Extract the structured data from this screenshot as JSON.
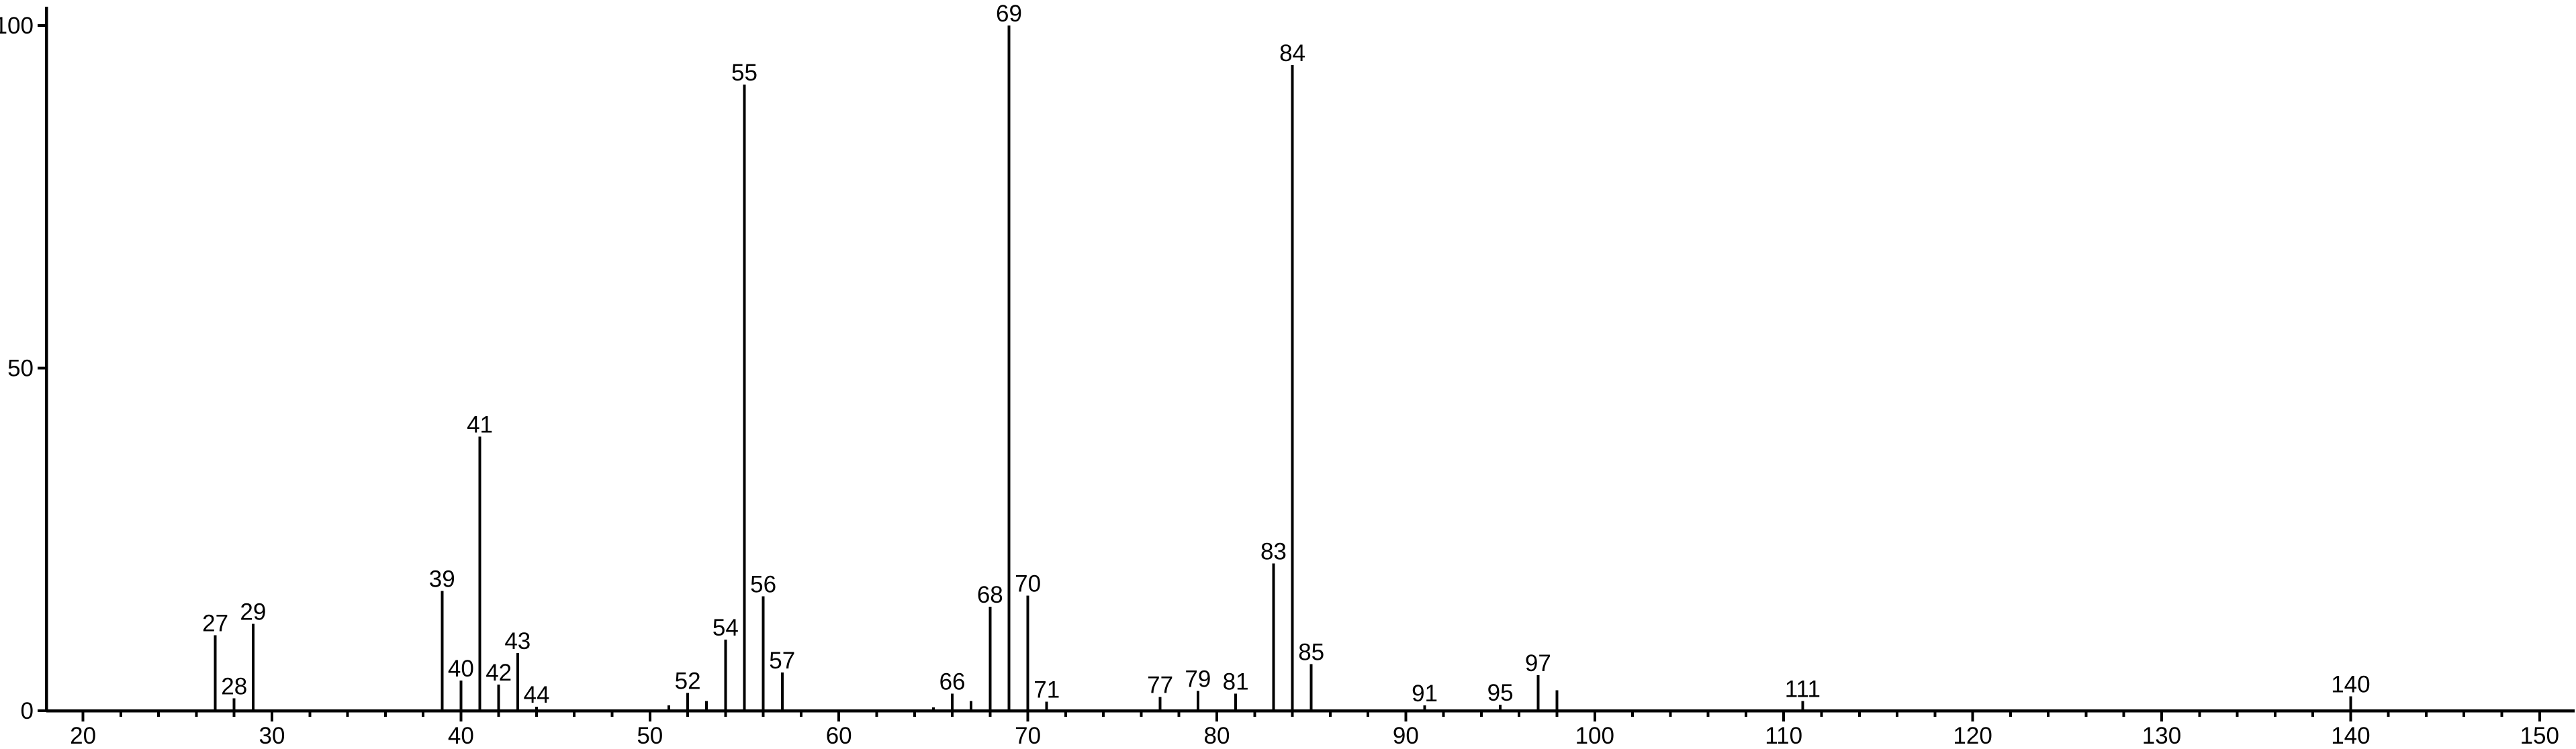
{
  "page": {
    "background_color": "#ffffff"
  },
  "chart_data": {
    "type": "bar",
    "variant": "mass-spectrum-stick",
    "title": "",
    "xlabel": "",
    "ylabel": "",
    "grid": false,
    "legend": null,
    "colors": {
      "foreground": "#000000",
      "background": "#ffffff"
    },
    "x_axis": {
      "min": 20,
      "max": 150,
      "major_step": 10,
      "minor_step": 2,
      "major_ticks": [
        {
          "value": 20,
          "label": "20"
        },
        {
          "value": 30,
          "label": "30"
        },
        {
          "value": 40,
          "label": "40"
        },
        {
          "value": 50,
          "label": "50"
        },
        {
          "value": 60,
          "label": "60"
        },
        {
          "value": 70,
          "label": "70"
        },
        {
          "value": 80,
          "label": "80"
        },
        {
          "value": 90,
          "label": "90"
        },
        {
          "value": 100,
          "label": "100"
        },
        {
          "value": 110,
          "label": "110"
        },
        {
          "value": 120,
          "label": "120"
        },
        {
          "value": 130,
          "label": "130"
        },
        {
          "value": 140,
          "label": "140"
        },
        {
          "value": 150,
          "label": "150"
        }
      ]
    },
    "y_axis": {
      "min": 0,
      "max": 100,
      "ticks": [
        {
          "value": 0,
          "label": "0"
        },
        {
          "value": 50,
          "label": "50"
        },
        {
          "value": 100,
          "label": "100"
        }
      ]
    },
    "peaks": [
      {
        "mz": 27,
        "intensity": 11.0,
        "label": "27"
      },
      {
        "mz": 28,
        "intensity": 1.8,
        "label": "28"
      },
      {
        "mz": 29,
        "intensity": 12.7,
        "label": "29"
      },
      {
        "mz": 39,
        "intensity": 17.5,
        "label": "39"
      },
      {
        "mz": 40,
        "intensity": 4.4,
        "label": "40"
      },
      {
        "mz": 41,
        "intensity": 40.0,
        "label": "41"
      },
      {
        "mz": 42,
        "intensity": 3.8,
        "label": "42"
      },
      {
        "mz": 43,
        "intensity": 8.4,
        "label": "43"
      },
      {
        "mz": 44,
        "intensity": 0.6,
        "label": "44"
      },
      {
        "mz": 51,
        "intensity": 0.8,
        "label": ""
      },
      {
        "mz": 52,
        "intensity": 2.6,
        "label": "52"
      },
      {
        "mz": 53,
        "intensity": 1.4,
        "label": ""
      },
      {
        "mz": 54,
        "intensity": 10.4,
        "label": "54"
      },
      {
        "mz": 55,
        "intensity": 91.4,
        "label": "55"
      },
      {
        "mz": 56,
        "intensity": 16.7,
        "label": "56"
      },
      {
        "mz": 57,
        "intensity": 5.6,
        "label": "57"
      },
      {
        "mz": 65,
        "intensity": 0.5,
        "label": ""
      },
      {
        "mz": 66,
        "intensity": 2.5,
        "label": "66"
      },
      {
        "mz": 67,
        "intensity": 1.4,
        "label": ""
      },
      {
        "mz": 68,
        "intensity": 15.2,
        "label": "68"
      },
      {
        "mz": 69,
        "intensity": 100.0,
        "label": "69"
      },
      {
        "mz": 70,
        "intensity": 16.8,
        "label": "70"
      },
      {
        "mz": 71,
        "intensity": 1.3,
        "label": "71"
      },
      {
        "mz": 77,
        "intensity": 2.0,
        "label": "77"
      },
      {
        "mz": 79,
        "intensity": 2.9,
        "label": "79"
      },
      {
        "mz": 81,
        "intensity": 2.5,
        "label": "81"
      },
      {
        "mz": 83,
        "intensity": 21.5,
        "label": "83"
      },
      {
        "mz": 84,
        "intensity": 94.2,
        "label": "84"
      },
      {
        "mz": 85,
        "intensity": 6.8,
        "label": "85"
      },
      {
        "mz": 91,
        "intensity": 0.8,
        "label": "91"
      },
      {
        "mz": 95,
        "intensity": 0.9,
        "label": "95"
      },
      {
        "mz": 97,
        "intensity": 5.2,
        "label": "97"
      },
      {
        "mz": 98,
        "intensity": 3.0,
        "label": ""
      },
      {
        "mz": 111,
        "intensity": 1.4,
        "label": "111"
      },
      {
        "mz": 140,
        "intensity": 2.1,
        "label": "140"
      }
    ]
  }
}
